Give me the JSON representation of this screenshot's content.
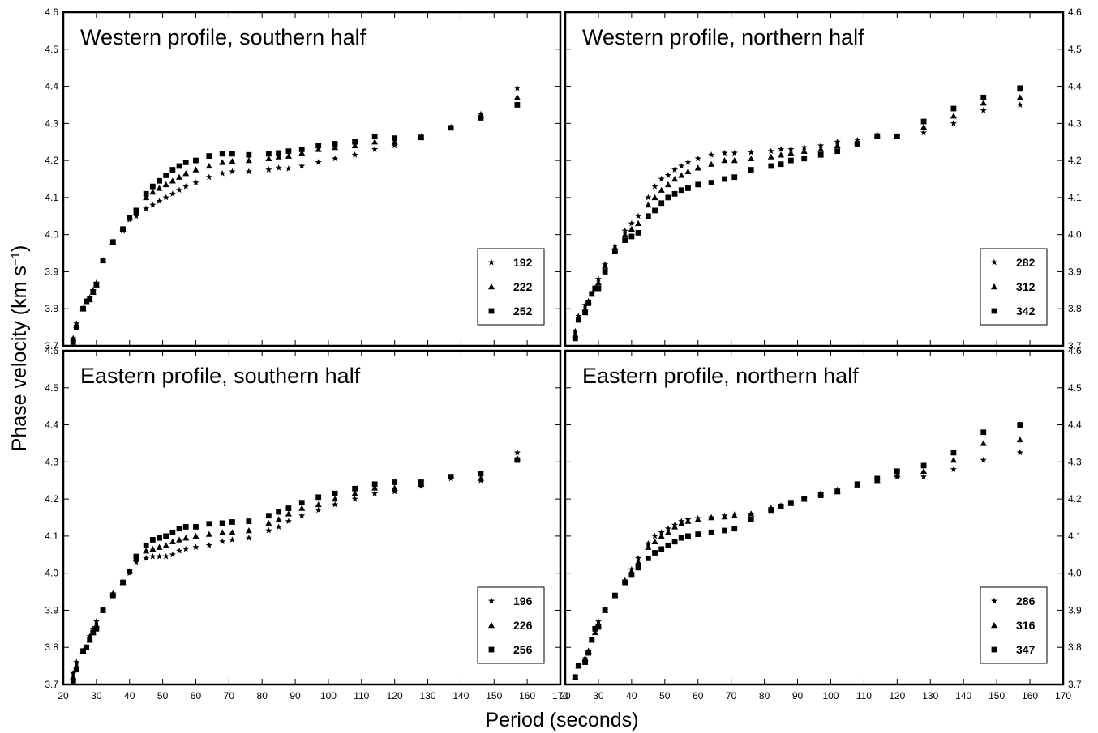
{
  "figure": {
    "xlabel": "Period (seconds)",
    "ylabel": "Phase velocity (km s",
    "ylabel_sup": "−1",
    "ylabel_close": ")"
  },
  "chart_data": [
    {
      "type": "scatter",
      "title": "Western profile, southern half",
      "xlim": [
        20,
        170
      ],
      "ylim": [
        3.7,
        4.6
      ],
      "x_ticks": [
        20,
        30,
        40,
        50,
        60,
        70,
        80,
        90,
        100,
        110,
        120,
        130,
        140,
        150,
        160,
        170
      ],
      "y_ticks": [
        3.7,
        3.8,
        3.9,
        4.0,
        4.1,
        4.2,
        4.3,
        4.4,
        4.5,
        4.6
      ],
      "legend_position": "bottom-right",
      "series": [
        {
          "name": "192",
          "marker": "star",
          "x": [
            23,
            24,
            26,
            27,
            28,
            29,
            30,
            32,
            35,
            38,
            40,
            42,
            45,
            47,
            49,
            51,
            53,
            55,
            57,
            60,
            64,
            68,
            71,
            76,
            82,
            85,
            88,
            92,
            97,
            102,
            108,
            114,
            120,
            128,
            137,
            146,
            157
          ],
          "y": [
            3.72,
            3.76,
            3.8,
            3.82,
            3.83,
            3.85,
            3.87,
            3.93,
            3.98,
            4.01,
            4.04,
            4.05,
            4.07,
            4.08,
            4.09,
            4.1,
            4.11,
            4.12,
            4.13,
            4.14,
            4.155,
            4.165,
            4.17,
            4.17,
            4.175,
            4.18,
            4.178,
            4.185,
            4.195,
            4.205,
            4.215,
            4.23,
            4.24,
            4.265,
            4.29,
            4.325,
            4.395
          ]
        },
        {
          "name": "222",
          "marker": "triangle",
          "x": [
            23,
            24,
            26,
            27,
            28,
            29,
            30,
            32,
            35,
            38,
            40,
            42,
            45,
            47,
            49,
            51,
            53,
            55,
            57,
            60,
            64,
            68,
            71,
            76,
            82,
            85,
            88,
            92,
            97,
            102,
            108,
            114,
            120,
            128,
            137,
            146,
            157
          ],
          "y": [
            3.72,
            3.755,
            3.8,
            3.82,
            3.825,
            3.845,
            3.865,
            3.93,
            3.98,
            4.015,
            4.045,
            4.06,
            4.1,
            4.115,
            4.125,
            4.135,
            4.145,
            4.155,
            4.165,
            4.175,
            4.185,
            4.195,
            4.198,
            4.2,
            4.205,
            4.21,
            4.212,
            4.22,
            4.23,
            4.235,
            4.24,
            4.25,
            4.25,
            4.262,
            4.288,
            4.32,
            4.37
          ]
        },
        {
          "name": "252",
          "marker": "square",
          "x": [
            23,
            24,
            26,
            27,
            28,
            29,
            30,
            32,
            35,
            38,
            40,
            42,
            45,
            47,
            49,
            51,
            53,
            55,
            57,
            60,
            64,
            68,
            71,
            76,
            82,
            85,
            88,
            92,
            97,
            102,
            108,
            114,
            120,
            128,
            137,
            146,
            157
          ],
          "y": [
            3.71,
            3.75,
            3.8,
            3.82,
            3.825,
            3.845,
            3.865,
            3.93,
            3.98,
            4.015,
            4.045,
            4.065,
            4.11,
            4.13,
            4.145,
            4.16,
            4.175,
            4.185,
            4.195,
            4.2,
            4.212,
            4.218,
            4.218,
            4.215,
            4.218,
            4.22,
            4.225,
            4.23,
            4.24,
            4.245,
            4.25,
            4.265,
            4.26,
            4.262,
            4.288,
            4.315,
            4.35
          ]
        }
      ]
    },
    {
      "type": "scatter",
      "title": "Western profile, northern half",
      "xlim": [
        20,
        170
      ],
      "ylim": [
        3.7,
        4.6
      ],
      "x_ticks": [
        20,
        30,
        40,
        50,
        60,
        70,
        80,
        90,
        100,
        110,
        120,
        130,
        140,
        150,
        160,
        170
      ],
      "y_ticks": [
        3.7,
        3.8,
        3.9,
        4.0,
        4.1,
        4.2,
        4.3,
        4.4,
        4.5,
        4.6
      ],
      "legend_position": "bottom-right",
      "series": [
        {
          "name": "282",
          "marker": "star",
          "x": [
            23,
            24,
            26,
            27,
            28,
            29,
            30,
            32,
            35,
            38,
            40,
            42,
            45,
            47,
            49,
            51,
            53,
            55,
            57,
            60,
            64,
            68,
            71,
            76,
            82,
            85,
            88,
            92,
            97,
            102,
            108,
            114,
            120,
            128,
            137,
            146,
            157
          ],
          "y": [
            3.74,
            3.78,
            3.81,
            3.82,
            3.84,
            3.855,
            3.88,
            3.92,
            3.97,
            4.01,
            4.03,
            4.05,
            4.1,
            4.13,
            4.15,
            4.16,
            4.175,
            4.185,
            4.195,
            4.205,
            4.215,
            4.22,
            4.22,
            4.222,
            4.225,
            4.23,
            4.23,
            4.235,
            4.24,
            4.25,
            4.255,
            4.27,
            4.265,
            4.275,
            4.3,
            4.335,
            4.35
          ]
        },
        {
          "name": "312",
          "marker": "triangle",
          "x": [
            23,
            24,
            26,
            27,
            28,
            29,
            30,
            32,
            35,
            38,
            40,
            42,
            45,
            47,
            49,
            51,
            53,
            55,
            57,
            60,
            64,
            68,
            71,
            76,
            82,
            85,
            88,
            92,
            97,
            102,
            108,
            114,
            120,
            128,
            137,
            146,
            157
          ],
          "y": [
            3.73,
            3.77,
            3.8,
            3.82,
            3.84,
            3.855,
            3.87,
            3.915,
            3.965,
            4.0,
            4.015,
            4.03,
            4.08,
            4.1,
            4.12,
            4.135,
            4.15,
            4.16,
            4.17,
            4.18,
            4.19,
            4.2,
            4.2,
            4.205,
            4.21,
            4.215,
            4.22,
            4.225,
            4.23,
            4.24,
            4.25,
            4.268,
            4.265,
            4.29,
            4.32,
            4.355,
            4.37
          ]
        },
        {
          "name": "342",
          "marker": "square",
          "x": [
            23,
            24,
            26,
            27,
            28,
            29,
            30,
            32,
            35,
            38,
            40,
            42,
            45,
            47,
            49,
            51,
            53,
            55,
            57,
            60,
            64,
            68,
            71,
            76,
            82,
            85,
            88,
            92,
            97,
            102,
            108,
            114,
            120,
            128,
            137,
            146,
            157
          ],
          "y": [
            3.72,
            3.77,
            3.79,
            3.815,
            3.84,
            3.855,
            3.855,
            3.9,
            3.955,
            3.985,
            3.995,
            4.005,
            4.05,
            4.065,
            4.085,
            4.1,
            4.11,
            4.12,
            4.125,
            4.135,
            4.14,
            4.15,
            4.155,
            4.175,
            4.185,
            4.19,
            4.2,
            4.205,
            4.215,
            4.225,
            4.245,
            4.265,
            4.265,
            4.305,
            4.34,
            4.37,
            4.395
          ]
        }
      ]
    },
    {
      "type": "scatter",
      "title": "Eastern profile, southern half",
      "xlim": [
        20,
        170
      ],
      "ylim": [
        3.7,
        4.6
      ],
      "x_ticks": [
        20,
        30,
        40,
        50,
        60,
        70,
        80,
        90,
        100,
        110,
        120,
        130,
        140,
        150,
        160,
        170
      ],
      "y_ticks": [
        3.7,
        3.8,
        3.9,
        4.0,
        4.1,
        4.2,
        4.3,
        4.4,
        4.5,
        4.6
      ],
      "legend_position": "bottom-right",
      "series": [
        {
          "name": "196",
          "marker": "star",
          "x": [
            23,
            24,
            26,
            27,
            28,
            29,
            30,
            32,
            35,
            38,
            40,
            42,
            45,
            47,
            49,
            51,
            53,
            55,
            57,
            60,
            64,
            68,
            71,
            76,
            82,
            85,
            88,
            92,
            97,
            102,
            108,
            114,
            120,
            128,
            137,
            146,
            157
          ],
          "y": [
            3.73,
            3.76,
            3.79,
            3.8,
            3.83,
            3.85,
            3.87,
            3.9,
            3.945,
            3.975,
            4.0,
            4.03,
            4.04,
            4.045,
            4.045,
            4.045,
            4.05,
            4.06,
            4.065,
            4.07,
            4.075,
            4.085,
            4.09,
            4.095,
            4.115,
            4.125,
            4.14,
            4.155,
            4.17,
            4.185,
            4.2,
            4.215,
            4.22,
            4.235,
            4.255,
            4.25,
            4.325
          ]
        },
        {
          "name": "226",
          "marker": "triangle",
          "x": [
            23,
            24,
            26,
            27,
            28,
            29,
            30,
            32,
            35,
            38,
            40,
            42,
            45,
            47,
            49,
            51,
            53,
            55,
            57,
            60,
            64,
            68,
            71,
            76,
            82,
            85,
            88,
            92,
            97,
            102,
            108,
            114,
            120,
            128,
            137,
            146,
            157
          ],
          "y": [
            3.72,
            3.75,
            3.79,
            3.8,
            3.82,
            3.84,
            3.86,
            3.9,
            3.945,
            3.975,
            4.005,
            4.04,
            4.06,
            4.065,
            4.07,
            4.075,
            4.085,
            4.09,
            4.095,
            4.1,
            4.105,
            4.11,
            4.11,
            4.115,
            4.135,
            4.145,
            4.16,
            4.175,
            4.185,
            4.2,
            4.215,
            4.23,
            4.23,
            4.24,
            4.26,
            4.255,
            4.31
          ]
        },
        {
          "name": "256",
          "marker": "square",
          "x": [
            23,
            24,
            26,
            27,
            28,
            29,
            30,
            32,
            35,
            38,
            40,
            42,
            45,
            47,
            49,
            51,
            53,
            55,
            57,
            60,
            64,
            68,
            71,
            76,
            82,
            85,
            88,
            92,
            97,
            102,
            108,
            114,
            120,
            128,
            137,
            146,
            157
          ],
          "y": [
            3.71,
            3.74,
            3.79,
            3.8,
            3.82,
            3.84,
            3.85,
            3.9,
            3.94,
            3.975,
            4.005,
            4.045,
            4.075,
            4.09,
            4.095,
            4.1,
            4.11,
            4.12,
            4.125,
            4.125,
            4.133,
            4.135,
            4.138,
            4.14,
            4.155,
            4.165,
            4.175,
            4.19,
            4.205,
            4.215,
            4.228,
            4.24,
            4.245,
            4.245,
            4.26,
            4.268,
            4.305
          ]
        }
      ]
    },
    {
      "type": "scatter",
      "title": "Eastern profile, northern half",
      "xlim": [
        20,
        170
      ],
      "ylim": [
        3.7,
        4.6
      ],
      "x_ticks": [
        20,
        30,
        40,
        50,
        60,
        70,
        80,
        90,
        100,
        110,
        120,
        130,
        140,
        150,
        160,
        170
      ],
      "y_ticks": [
        3.7,
        3.8,
        3.9,
        4.0,
        4.1,
        4.2,
        4.3,
        4.4,
        4.5,
        4.6
      ],
      "legend_position": "bottom-right",
      "series": [
        {
          "name": "286",
          "marker": "star",
          "x": [
            23,
            24,
            26,
            27,
            28,
            29,
            30,
            32,
            35,
            38,
            40,
            42,
            45,
            47,
            49,
            51,
            53,
            55,
            57,
            60,
            64,
            68,
            71,
            76,
            82,
            85,
            88,
            92,
            97,
            102,
            108,
            114,
            120,
            128,
            137,
            146,
            157
          ],
          "y": [
            3.72,
            3.75,
            3.77,
            3.79,
            3.82,
            3.85,
            3.87,
            3.9,
            3.94,
            3.98,
            4.01,
            4.04,
            4.08,
            4.1,
            4.11,
            4.12,
            4.13,
            4.14,
            4.145,
            4.148,
            4.15,
            4.155,
            4.158,
            4.16,
            4.175,
            4.182,
            4.19,
            4.2,
            4.215,
            4.225,
            4.24,
            4.25,
            4.26,
            4.26,
            4.28,
            4.305,
            4.325
          ]
        },
        {
          "name": "316",
          "marker": "triangle",
          "x": [
            23,
            24,
            26,
            27,
            28,
            29,
            30,
            32,
            35,
            38,
            40,
            42,
            45,
            47,
            49,
            51,
            53,
            55,
            57,
            60,
            64,
            68,
            71,
            76,
            82,
            85,
            88,
            92,
            97,
            102,
            108,
            114,
            120,
            128,
            137,
            146,
            157
          ],
          "y": [
            3.72,
            3.75,
            3.77,
            3.79,
            3.82,
            3.84,
            3.86,
            3.9,
            3.94,
            3.98,
            4.005,
            4.03,
            4.07,
            4.085,
            4.1,
            4.11,
            4.125,
            4.135,
            4.14,
            4.145,
            4.15,
            4.152,
            4.155,
            4.16,
            4.175,
            4.18,
            4.188,
            4.2,
            4.215,
            4.222,
            4.238,
            4.25,
            4.265,
            4.275,
            4.305,
            4.35,
            4.36
          ]
        },
        {
          "name": "347",
          "marker": "square",
          "x": [
            23,
            24,
            26,
            27,
            28,
            29,
            30,
            32,
            35,
            38,
            40,
            42,
            45,
            47,
            49,
            51,
            53,
            55,
            57,
            60,
            64,
            68,
            71,
            76,
            82,
            85,
            88,
            92,
            97,
            102,
            108,
            114,
            120,
            128,
            137,
            146,
            157
          ],
          "y": [
            3.72,
            3.75,
            3.76,
            3.785,
            3.82,
            3.85,
            3.855,
            3.9,
            3.94,
            3.975,
            3.995,
            4.015,
            4.04,
            4.055,
            4.065,
            4.075,
            4.085,
            4.095,
            4.1,
            4.105,
            4.11,
            4.115,
            4.12,
            4.145,
            4.17,
            4.18,
            4.19,
            4.2,
            4.21,
            4.22,
            4.24,
            4.255,
            4.275,
            4.29,
            4.325,
            4.38,
            4.4
          ]
        }
      ]
    }
  ]
}
